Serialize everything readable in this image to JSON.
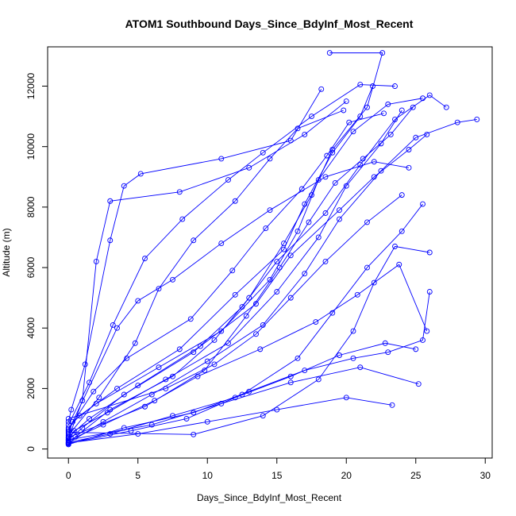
{
  "chart_data": {
    "type": "scatter",
    "title": "ATOM1 Southbound Days_Since_BdyInf_Most_Recent",
    "xlabel": "Days_Since_BdyInf_Most_Recent",
    "ylabel": "Altitude (m)",
    "xlim": [
      -1.5,
      30.5
    ],
    "ylim": [
      -300,
      13300
    ],
    "xticks": [
      0,
      5,
      10,
      15,
      20,
      25,
      30
    ],
    "yticks": [
      0,
      2000,
      4000,
      6000,
      8000,
      10000,
      12000
    ],
    "grid": false,
    "legend": "none",
    "color": "#0000ff",
    "series": [
      {
        "values": [
          {
            "x": 0.0,
            "y": 150
          },
          {
            "x": 0.5,
            "y": 400
          },
          {
            "x": 3.0,
            "y": 1300
          },
          {
            "x": 7.5,
            "y": 2400
          },
          {
            "x": 10.5,
            "y": 3600
          },
          {
            "x": 13.0,
            "y": 5000
          },
          {
            "x": 15.5,
            "y": 6800
          },
          {
            "x": 17.5,
            "y": 8400
          },
          {
            "x": 19.0,
            "y": 9900
          },
          {
            "x": 21.5,
            "y": 11300
          },
          {
            "x": 22.6,
            "y": 13100
          },
          {
            "x": 18.8,
            "y": 13100
          }
        ]
      },
      {
        "values": [
          {
            "x": 0.0,
            "y": 300
          },
          {
            "x": 1.0,
            "y": 700
          },
          {
            "x": 4.0,
            "y": 1800
          },
          {
            "x": 9.0,
            "y": 3200
          },
          {
            "x": 12.5,
            "y": 4700
          },
          {
            "x": 15.0,
            "y": 6200
          },
          {
            "x": 18.5,
            "y": 7800
          },
          {
            "x": 21.0,
            "y": 9400
          },
          {
            "x": 23.5,
            "y": 10900
          },
          {
            "x": 26.0,
            "y": 11700
          },
          {
            "x": 27.2,
            "y": 11300
          }
        ]
      },
      {
        "values": [
          {
            "x": 0.0,
            "y": 500
          },
          {
            "x": 0.3,
            "y": 900
          },
          {
            "x": 2.0,
            "y": 1500
          },
          {
            "x": 6.5,
            "y": 2700
          },
          {
            "x": 11.0,
            "y": 3900
          },
          {
            "x": 14.5,
            "y": 5600
          },
          {
            "x": 16.5,
            "y": 7200
          },
          {
            "x": 18.0,
            "y": 8900
          },
          {
            "x": 20.5,
            "y": 10500
          },
          {
            "x": 23.0,
            "y": 11400
          },
          {
            "x": 25.5,
            "y": 11600
          }
        ]
      },
      {
        "values": [
          {
            "x": 0.0,
            "y": 200
          },
          {
            "x": 2.5,
            "y": 900
          },
          {
            "x": 6.0,
            "y": 1800
          },
          {
            "x": 10.0,
            "y": 2900
          },
          {
            "x": 14.0,
            "y": 4100
          },
          {
            "x": 17.0,
            "y": 5800
          },
          {
            "x": 19.5,
            "y": 7600
          },
          {
            "x": 22.5,
            "y": 9200
          },
          {
            "x": 25.0,
            "y": 10300
          },
          {
            "x": 28.0,
            "y": 10800
          },
          {
            "x": 29.4,
            "y": 10900
          }
        ]
      },
      {
        "values": [
          {
            "x": 0.0,
            "y": 700
          },
          {
            "x": 0.8,
            "y": 1100
          },
          {
            "x": 3.5,
            "y": 2000
          },
          {
            "x": 8.0,
            "y": 3300
          },
          {
            "x": 12.0,
            "y": 5100
          },
          {
            "x": 15.5,
            "y": 6600
          },
          {
            "x": 17.0,
            "y": 8100
          },
          {
            "x": 19.0,
            "y": 9800
          },
          {
            "x": 21.0,
            "y": 11000
          },
          {
            "x": 21.9,
            "y": 12000
          }
        ]
      },
      {
        "values": [
          {
            "x": 0.0,
            "y": 400
          },
          {
            "x": 1.5,
            "y": 1000
          },
          {
            "x": 5.0,
            "y": 2100
          },
          {
            "x": 9.5,
            "y": 3400
          },
          {
            "x": 13.5,
            "y": 4800
          },
          {
            "x": 16.0,
            "y": 6400
          },
          {
            "x": 19.5,
            "y": 7900
          },
          {
            "x": 22.0,
            "y": 9000
          },
          {
            "x": 24.5,
            "y": 9900
          },
          {
            "x": 25.8,
            "y": 10400
          }
        ]
      },
      {
        "values": [
          {
            "x": 0.0,
            "y": 250
          },
          {
            "x": 0.4,
            "y": 600
          },
          {
            "x": 2.8,
            "y": 1200
          },
          {
            "x": 7.0,
            "y": 2300
          },
          {
            "x": 11.5,
            "y": 3500
          },
          {
            "x": 15.0,
            "y": 5200
          },
          {
            "x": 18.0,
            "y": 7000
          },
          {
            "x": 20.0,
            "y": 8700
          },
          {
            "x": 22.5,
            "y": 10100
          },
          {
            "x": 24.0,
            "y": 11200
          }
        ]
      },
      {
        "values": [
          {
            "x": 0.0,
            "y": 900
          },
          {
            "x": 0.2,
            "y": 1300
          },
          {
            "x": 1.2,
            "y": 2800
          },
          {
            "x": 3.0,
            "y": 6900
          },
          {
            "x": 4.0,
            "y": 8700
          },
          {
            "x": 5.2,
            "y": 9100
          },
          {
            "x": 11.0,
            "y": 9600
          },
          {
            "x": 16.0,
            "y": 10200
          },
          {
            "x": 18.2,
            "y": 11900
          }
        ]
      },
      {
        "values": [
          {
            "x": 0.0,
            "y": 350
          },
          {
            "x": 1.0,
            "y": 1600
          },
          {
            "x": 2.0,
            "y": 6200
          },
          {
            "x": 3.0,
            "y": 8200
          },
          {
            "x": 8.0,
            "y": 8500
          },
          {
            "x": 13.0,
            "y": 9300
          },
          {
            "x": 17.0,
            "y": 10400
          },
          {
            "x": 20.0,
            "y": 11500
          }
        ]
      },
      {
        "values": [
          {
            "x": 0.0,
            "y": 600
          },
          {
            "x": 3.5,
            "y": 4000
          },
          {
            "x": 5.0,
            "y": 4900
          },
          {
            "x": 7.5,
            "y": 5600
          },
          {
            "x": 11.0,
            "y": 6800
          },
          {
            "x": 14.5,
            "y": 7900
          },
          {
            "x": 18.5,
            "y": 9000
          },
          {
            "x": 22.0,
            "y": 9500
          },
          {
            "x": 24.5,
            "y": 9300
          }
        ]
      },
      {
        "values": [
          {
            "x": 0.0,
            "y": 150
          },
          {
            "x": 4.0,
            "y": 700
          },
          {
            "x": 9.0,
            "y": 1200
          },
          {
            "x": 13.0,
            "y": 1900
          },
          {
            "x": 17.0,
            "y": 2600
          },
          {
            "x": 20.5,
            "y": 3000
          },
          {
            "x": 23.0,
            "y": 3200
          },
          {
            "x": 25.5,
            "y": 3600
          },
          {
            "x": 26.0,
            "y": 5200
          }
        ]
      },
      {
        "values": [
          {
            "x": 0.0,
            "y": 200
          },
          {
            "x": 5.0,
            "y": 500
          },
          {
            "x": 10.0,
            "y": 900
          },
          {
            "x": 15.0,
            "y": 1300
          },
          {
            "x": 20.0,
            "y": 1700
          },
          {
            "x": 23.3,
            "y": 1450
          }
        ]
      },
      {
        "values": [
          {
            "x": 0.0,
            "y": 300
          },
          {
            "x": 6.0,
            "y": 800
          },
          {
            "x": 11.0,
            "y": 1500
          },
          {
            "x": 16.0,
            "y": 2200
          },
          {
            "x": 21.0,
            "y": 2700
          },
          {
            "x": 25.2,
            "y": 2150
          }
        ]
      },
      {
        "values": [
          {
            "x": 0.0,
            "y": 180
          },
          {
            "x": 4.5,
            "y": 600
          },
          {
            "x": 8.5,
            "y": 1000
          },
          {
            "x": 12.5,
            "y": 1800
          },
          {
            "x": 16.5,
            "y": 3000
          },
          {
            "x": 19.0,
            "y": 4500
          },
          {
            "x": 21.5,
            "y": 6000
          },
          {
            "x": 24.0,
            "y": 7200
          },
          {
            "x": 25.5,
            "y": 8100
          }
        ]
      },
      {
        "values": [
          {
            "x": 0.0,
            "y": 450
          },
          {
            "x": 2.2,
            "y": 1700
          },
          {
            "x": 4.8,
            "y": 3500
          },
          {
            "x": 6.5,
            "y": 5300
          },
          {
            "x": 9.0,
            "y": 6900
          },
          {
            "x": 12.0,
            "y": 8200
          },
          {
            "x": 14.5,
            "y": 9600
          },
          {
            "x": 16.5,
            "y": 10600
          },
          {
            "x": 19.8,
            "y": 11200
          }
        ]
      },
      {
        "values": [
          {
            "x": 0.0,
            "y": 800
          },
          {
            "x": 1.5,
            "y": 2200
          },
          {
            "x": 3.2,
            "y": 4100
          },
          {
            "x": 5.5,
            "y": 6300
          },
          {
            "x": 8.2,
            "y": 7600
          },
          {
            "x": 11.5,
            "y": 8900
          },
          {
            "x": 14.0,
            "y": 9800
          },
          {
            "x": 17.5,
            "y": 11000
          },
          {
            "x": 21.0,
            "y": 12050
          },
          {
            "x": 23.5,
            "y": 12000
          }
        ]
      },
      {
        "values": [
          {
            "x": 0.0,
            "y": 550
          },
          {
            "x": 9.0,
            "y": 480
          },
          {
            "x": 14.0,
            "y": 1100
          },
          {
            "x": 18.0,
            "y": 2300
          },
          {
            "x": 20.5,
            "y": 3900
          },
          {
            "x": 22.0,
            "y": 5500
          },
          {
            "x": 23.5,
            "y": 6700
          },
          {
            "x": 26.0,
            "y": 6500
          }
        ]
      },
      {
        "values": [
          {
            "x": 0.0,
            "y": 1000
          },
          {
            "x": 7.0,
            "y": 2000
          },
          {
            "x": 10.5,
            "y": 2800
          },
          {
            "x": 13.5,
            "y": 3800
          },
          {
            "x": 16.0,
            "y": 5000
          },
          {
            "x": 18.5,
            "y": 6200
          },
          {
            "x": 21.5,
            "y": 7500
          },
          {
            "x": 24.0,
            "y": 8400
          }
        ]
      },
      {
        "values": [
          {
            "x": 0.0,
            "y": 220
          },
          {
            "x": 3.0,
            "y": 500
          },
          {
            "x": 7.5,
            "y": 1100
          },
          {
            "x": 12.0,
            "y": 1700
          },
          {
            "x": 16.0,
            "y": 2400
          },
          {
            "x": 19.5,
            "y": 3100
          },
          {
            "x": 22.8,
            "y": 3500
          },
          {
            "x": 25.0,
            "y": 3300
          }
        ]
      },
      {
        "values": [
          {
            "x": 0.0,
            "y": 650
          },
          {
            "x": 1.8,
            "y": 1900
          },
          {
            "x": 4.2,
            "y": 3000
          },
          {
            "x": 8.8,
            "y": 4300
          },
          {
            "x": 11.8,
            "y": 5900
          },
          {
            "x": 14.2,
            "y": 7300
          },
          {
            "x": 16.8,
            "y": 8600
          },
          {
            "x": 18.6,
            "y": 9700
          },
          {
            "x": 20.2,
            "y": 10800
          },
          {
            "x": 22.7,
            "y": 11100
          }
        ]
      },
      {
        "values": [
          {
            "x": 0.0,
            "y": 380
          },
          {
            "x": 5.5,
            "y": 1400
          },
          {
            "x": 9.8,
            "y": 2600
          },
          {
            "x": 12.8,
            "y": 4400
          },
          {
            "x": 15.2,
            "y": 6000
          },
          {
            "x": 17.3,
            "y": 7500
          },
          {
            "x": 19.2,
            "y": 8800
          },
          {
            "x": 21.2,
            "y": 9600
          },
          {
            "x": 23.2,
            "y": 10400
          },
          {
            "x": 24.8,
            "y": 11300
          }
        ]
      },
      {
        "values": [
          {
            "x": 0.0,
            "y": 280
          },
          {
            "x": 2.5,
            "y": 800
          },
          {
            "x": 6.2,
            "y": 1600
          },
          {
            "x": 9.3,
            "y": 2400
          },
          {
            "x": 13.8,
            "y": 3300
          },
          {
            "x": 17.8,
            "y": 4200
          },
          {
            "x": 20.8,
            "y": 5100
          },
          {
            "x": 23.8,
            "y": 6100
          },
          {
            "x": 25.8,
            "y": 3900
          }
        ]
      }
    ]
  }
}
